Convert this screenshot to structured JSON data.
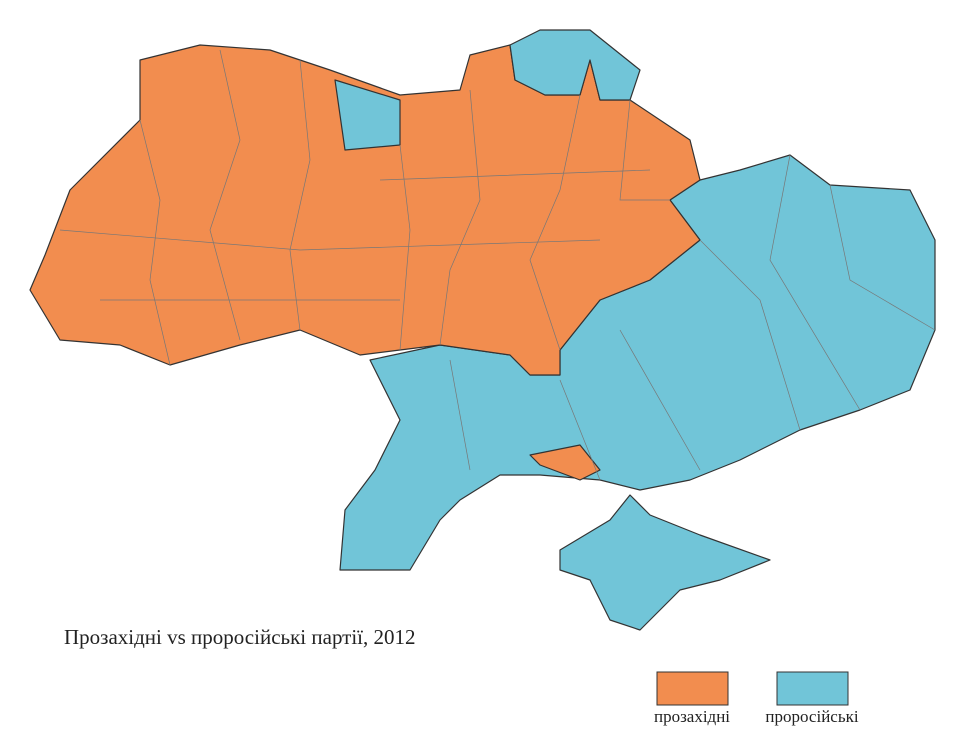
{
  "title": "Прозахідні vs проросійські партії, 2012",
  "legend": [
    {
      "label": "прозахідні",
      "color": "#f28d4f"
    },
    {
      "label": "проросійські",
      "color": "#71c5d8"
    }
  ]
}
